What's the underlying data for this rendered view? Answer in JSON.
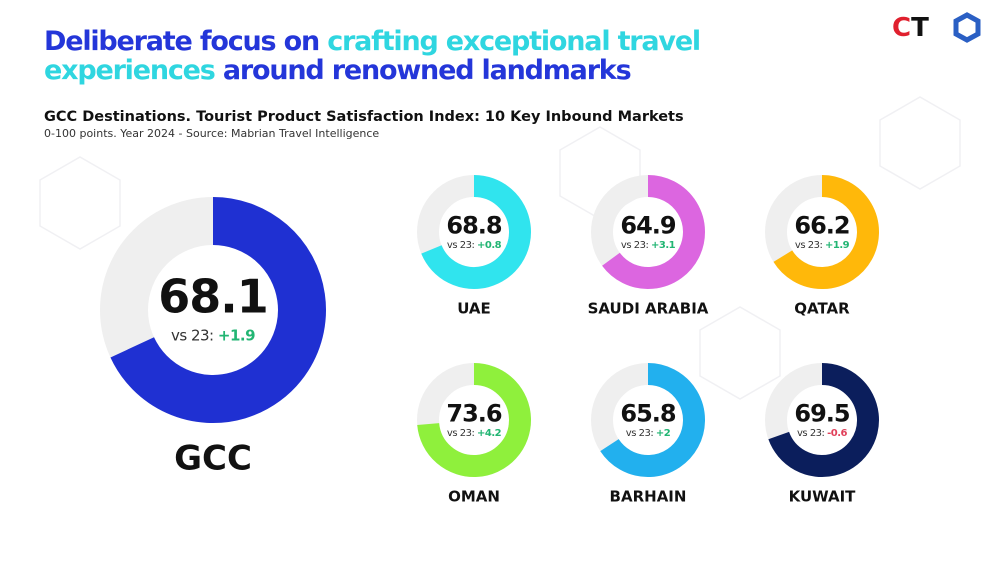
{
  "header": {
    "title_lines": [
      [
        {
          "text": "Deliberate focus on ",
          "color": "#2436d9"
        },
        {
          "text": "crafting exceptional travel",
          "color": "#2fd6e0"
        }
      ],
      [
        {
          "text": "experiences ",
          "color": "#2fd6e0"
        },
        {
          "text": "around renowned landmarks",
          "color": "#2436d9"
        }
      ]
    ],
    "logo": [
      {
        "text": "C",
        "color": "#e0202e"
      },
      {
        "text": "T",
        "color": "#111111"
      }
    ]
  },
  "chart_data": {
    "type": "donut",
    "title": "GCC Destinations. Tourist Product Satisfaction Index: 10 Key Inbound Markets",
    "subtitle": "0-100 points. Year 2024 - Source: Mabrian Travel Intelligence",
    "ylim": [
      0,
      100
    ],
    "comparison_label": "vs 23:",
    "categories": [
      "GCC",
      "UAE",
      "SAUDI ARABIA",
      "QATAR",
      "OMAN",
      "BARHAIN",
      "KUWAIT"
    ],
    "values": [
      68.1,
      68.8,
      64.9,
      66.2,
      73.6,
      65.8,
      69.5
    ],
    "changes": [
      1.9,
      0.8,
      3.1,
      1.9,
      4.2,
      2,
      -0.6
    ],
    "change_labels": [
      "+1.9",
      "+0.8",
      "+3.1",
      "+1.9",
      "+4.2",
      "+2",
      "-0.6"
    ],
    "colors": [
      "#1f30d2",
      "#30e4ee",
      "#dc66e0",
      "#ffb80a",
      "#8ff03c",
      "#22b0ee",
      "#0b1e5c"
    ],
    "track_color": "#efefef",
    "positive_color": "#22b573",
    "negative_color": "#e0405a"
  }
}
